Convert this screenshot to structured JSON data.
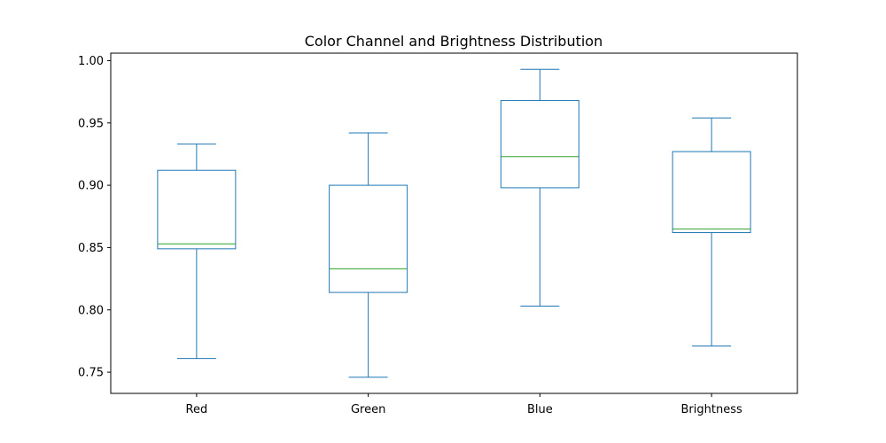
{
  "chart_data": {
    "type": "box",
    "title": "Color Channel and Brightness Distribution",
    "xlabel": "",
    "ylabel": "",
    "ylim": [
      0.733,
      1.006
    ],
    "yticks": [
      "0.75",
      "0.80",
      "0.85",
      "0.90",
      "0.95",
      "1.00"
    ],
    "grid": false,
    "categories": [
      "Red",
      "Green",
      "Blue",
      "Brightness"
    ],
    "boxes": [
      {
        "name": "Red",
        "whisker_low": 0.761,
        "q1": 0.849,
        "median": 0.853,
        "q3": 0.912,
        "whisker_high": 0.933
      },
      {
        "name": "Green",
        "whisker_low": 0.746,
        "q1": 0.814,
        "median": 0.833,
        "q3": 0.9,
        "whisker_high": 0.942
      },
      {
        "name": "Blue",
        "whisker_low": 0.803,
        "q1": 0.898,
        "median": 0.923,
        "q3": 0.968,
        "whisker_high": 0.993
      },
      {
        "name": "Brightness",
        "whisker_low": 0.771,
        "q1": 0.862,
        "median": 0.865,
        "q3": 0.927,
        "whisker_high": 0.954
      }
    ],
    "colors": {
      "box": "#1f77b4",
      "median": "#2ca02c",
      "axis": "#000000"
    }
  }
}
